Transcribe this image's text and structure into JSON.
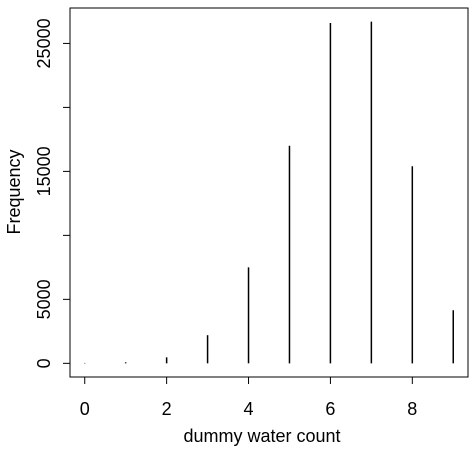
{
  "chart_data": {
    "type": "spike",
    "x_label": "dummy water count",
    "y_label": "Frequency",
    "x": [
      0,
      1,
      2,
      3,
      4,
      5,
      6,
      7,
      8,
      9
    ],
    "values": [
      30,
      80,
      470,
      2200,
      7500,
      17000,
      26600,
      26700,
      15400,
      4150
    ],
    "color": "#000000",
    "xlim": [
      -0.36,
      9.36
    ],
    "xticks": [
      0,
      2,
      4,
      6,
      8
    ],
    "ylim": [
      -1068,
      27768
    ],
    "yticks": [
      0,
      5000,
      {
        "value": 10000,
        "label": null
      },
      15000,
      {
        "value": 20000,
        "label": null
      },
      25000
    ]
  }
}
